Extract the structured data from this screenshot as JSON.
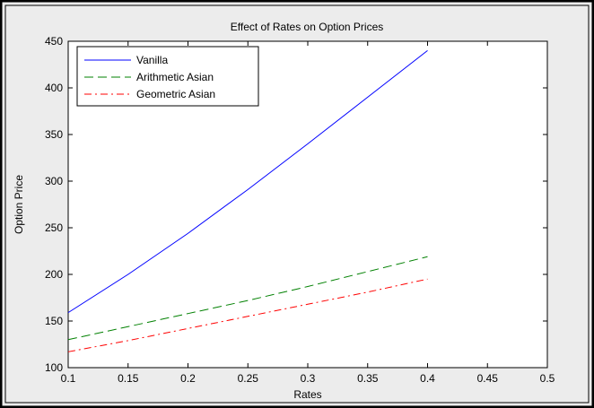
{
  "chart_data": {
    "type": "line",
    "title": "Effect of Rates on Option Prices",
    "xlabel": "Rates",
    "ylabel": "Option Price",
    "xlim": [
      0.1,
      0.5
    ],
    "ylim": [
      100,
      450
    ],
    "xticks": [
      0.1,
      0.15,
      0.2,
      0.25,
      0.3,
      0.35,
      0.4,
      0.45,
      0.5
    ],
    "yticks": [
      100,
      150,
      200,
      250,
      300,
      350,
      400,
      450
    ],
    "xtick_labels": [
      "0.1",
      "0.15",
      "0.2",
      "0.25",
      "0.3",
      "0.35",
      "0.4",
      "0.45",
      "0.5"
    ],
    "ytick_labels": [
      "100",
      "150",
      "200",
      "250",
      "300",
      "350",
      "400",
      "450"
    ],
    "grid": false,
    "legend_position": "top-left",
    "x": [
      0.1,
      0.15,
      0.2,
      0.25,
      0.3,
      0.35,
      0.4
    ],
    "series": [
      {
        "name": "Vanilla",
        "color": "#0000ff",
        "style": "solid",
        "values": [
          159,
          200,
          244,
          291,
          340,
          390,
          440
        ]
      },
      {
        "name": "Arithmetic Asian",
        "color": "#008000",
        "style": "dashed",
        "values": [
          130,
          144,
          158,
          172,
          187,
          203,
          219
        ]
      },
      {
        "name": "Geometric Asian",
        "color": "#ff0000",
        "style": "dashdot",
        "values": [
          117,
          129,
          142,
          155,
          168,
          181,
          195
        ]
      }
    ]
  }
}
